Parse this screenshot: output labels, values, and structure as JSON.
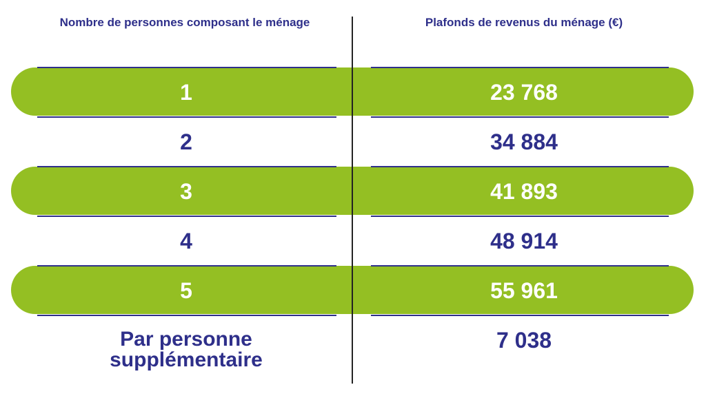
{
  "headers": {
    "household_size": "Nombre de personnes composant le ménage",
    "income_ceiling": "Plafonds de revenus du ménage (€)"
  },
  "rows": [
    {
      "persons": "1",
      "ceiling": "23 768"
    },
    {
      "persons": "2",
      "ceiling": "34 884"
    },
    {
      "persons": "3",
      "ceiling": "41 893"
    },
    {
      "persons": "4",
      "ceiling": "48 914"
    },
    {
      "persons": "5",
      "ceiling": "55 961"
    }
  ],
  "extra": {
    "label": "Par personne supplémentaire",
    "ceiling": "7 038"
  },
  "colors": {
    "accent_green": "#94bf23",
    "text_navy": "#2e2f8a",
    "divider": "#222222"
  }
}
